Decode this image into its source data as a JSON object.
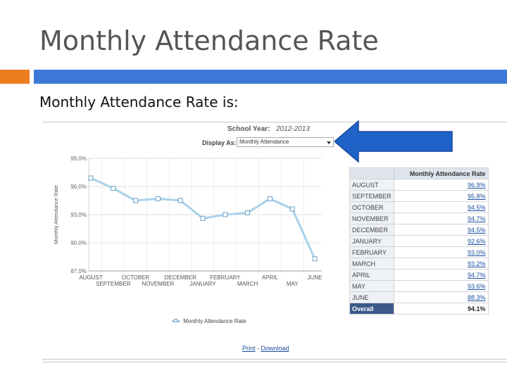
{
  "slide": {
    "title": "Monthly Attendance Rate",
    "subtitle": "Monthly Attendance Rate is:"
  },
  "controls": {
    "school_year_label": "School Year:",
    "school_year_value": "2012-2013",
    "display_as_label": "Display As:",
    "display_as_value": "Monthly Attendance"
  },
  "table": {
    "header": "Monthly Attendance Rate",
    "rows": [
      {
        "month": "AUGUST",
        "value": "96.9%"
      },
      {
        "month": "SEPTEMBER",
        "value": "95.8%"
      },
      {
        "month": "OCTOBER",
        "value": "94.5%"
      },
      {
        "month": "NOVEMBER",
        "value": "94.7%"
      },
      {
        "month": "DECEMBER",
        "value": "94.5%"
      },
      {
        "month": "JANUARY",
        "value": "92.6%"
      },
      {
        "month": "FEBRUARY",
        "value": "93.0%"
      },
      {
        "month": "MARCH",
        "value": "93.2%"
      },
      {
        "month": "APRIL",
        "value": "94.7%"
      },
      {
        "month": "MAY",
        "value": "93.6%"
      },
      {
        "month": "JUNE",
        "value": "88.3%"
      }
    ],
    "overall_label": "Overall",
    "overall_value": "94.1%"
  },
  "links": {
    "print": "Print",
    "separator": " - ",
    "download": "Download"
  },
  "chart_data": {
    "type": "line",
    "title": "",
    "xlabel": "",
    "ylabel": "Monthly Attendance Rate",
    "categories": [
      "AUGUST",
      "SEPTEMBER",
      "OCTOBER",
      "NOVEMBER",
      "DECEMBER",
      "JANUARY",
      "FEBRUARY",
      "MARCH",
      "APRIL",
      "MAY",
      "JUNE"
    ],
    "series": [
      {
        "name": "Monthly Attendance Rate",
        "values": [
          96.9,
          95.8,
          94.5,
          94.7,
          94.5,
          92.6,
          93.0,
          93.2,
          94.7,
          93.6,
          88.3
        ],
        "color": "#a9d2ea",
        "marker_color": "#6d9ec5"
      }
    ],
    "ylim": [
      87,
      99
    ],
    "yticks": [
      87,
      90,
      93,
      96,
      99
    ],
    "ytick_labels": [
      "87.0%",
      "90.0%",
      "93.0%",
      "96.0%",
      "99.0%"
    ],
    "grid": true,
    "legend": "bottom"
  }
}
